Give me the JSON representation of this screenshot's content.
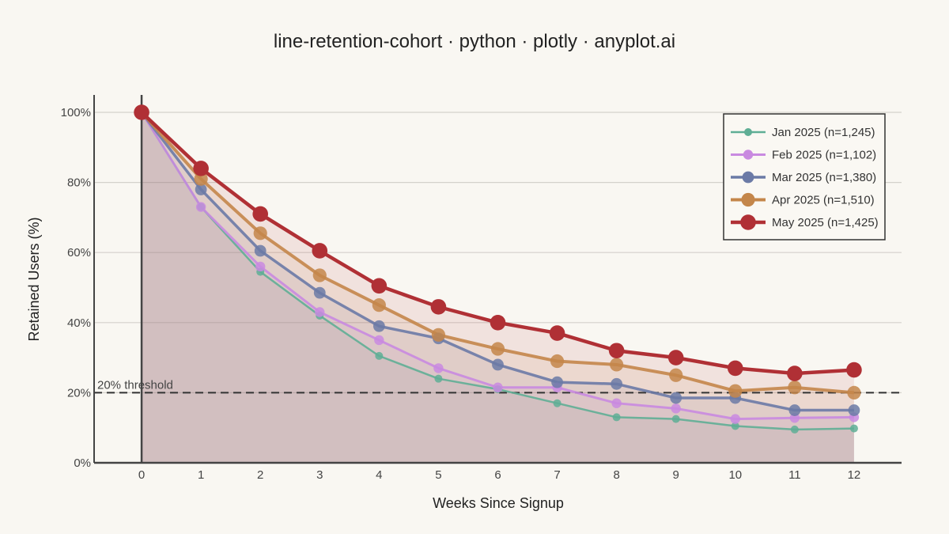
{
  "chart_data": {
    "type": "line",
    "title": "line-retention-cohort · python · plotly · anyplot.ai",
    "xlabel": "Weeks Since Signup",
    "ylabel": "Retained Users (%)",
    "x": [
      0,
      1,
      2,
      3,
      4,
      5,
      6,
      7,
      8,
      9,
      10,
      11,
      12
    ],
    "xlim": [
      -0.8,
      12.8
    ],
    "ylim": [
      0,
      100
    ],
    "y_ticks": [
      0,
      20,
      40,
      60,
      80,
      100
    ],
    "y_tick_suffix": "%",
    "grid": true,
    "legend_position": "top-right",
    "threshold": {
      "value": 20,
      "label": "20% threshold"
    },
    "series": [
      {
        "name": "Jan 2025 (n=1,245)",
        "color": "#5fae95",
        "values": [
          100,
          73,
          54.5,
          42,
          30.5,
          24,
          21,
          17,
          13,
          12.5,
          10.5,
          9.5,
          9.8
        ]
      },
      {
        "name": "Feb 2025 (n=1,102)",
        "color": "#c98ae0",
        "values": [
          100,
          73,
          56,
          43,
          35,
          27,
          21.5,
          21.5,
          17,
          15.5,
          12.5,
          12.8,
          13
        ]
      },
      {
        "name": "Mar 2025 (n=1,380)",
        "color": "#6b7aa6",
        "values": [
          100,
          78,
          60.5,
          48.5,
          39,
          35.5,
          28,
          23,
          22.5,
          18.5,
          18.5,
          15,
          15
        ]
      },
      {
        "name": "Apr 2025 (n=1,510)",
        "color": "#c4864a",
        "values": [
          100,
          81,
          65.5,
          53.5,
          45,
          36.5,
          32.5,
          29,
          28,
          25,
          20.5,
          21.5,
          20
        ]
      },
      {
        "name": "May 2025 (n=1,425)",
        "color": "#b03035",
        "values": [
          100,
          84,
          71,
          60.5,
          50.5,
          44.5,
          40,
          37,
          32,
          30,
          27,
          25.5,
          26.5
        ]
      }
    ]
  }
}
